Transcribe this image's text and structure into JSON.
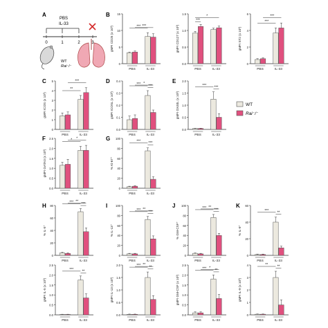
{
  "colors": {
    "wt": "#ece9df",
    "ko": "#e0507e",
    "axis": "#333333",
    "bar_stroke": "#555555"
  },
  "schematic": {
    "panel_label": "A",
    "group_labels": [
      "PBS",
      "IL-33"
    ],
    "days": [
      "0",
      "1",
      "2",
      "3"
    ],
    "mouse_label": "WT",
    "mouse_label_2": "Rai⁻/⁻",
    "cross_icon": "red-x-icon"
  },
  "legend": {
    "items": [
      "WT",
      "Rai⁻/⁻"
    ]
  },
  "chart_data": [
    {
      "panel": "B",
      "type": "bar",
      "ylabel": "gMFI CD25 (x 10³)",
      "categories": [
        "PBS",
        "IL-33"
      ],
      "ylim": [
        0,
        15
      ],
      "ticks": [
        0,
        5,
        10,
        15
      ],
      "series": [
        {
          "name": "WT",
          "values": [
            3.3,
            8.2
          ]
        },
        {
          "name": "Rai⁻/⁻",
          "values": [
            3.5,
            8.0
          ]
        }
      ],
      "errors": [
        [
          0.2,
          1.1
        ],
        [
          0.3,
          1.0
        ]
      ],
      "sig": [
        {
          "from": 0,
          "to": 2,
          "label": "***"
        },
        {
          "from": 1,
          "to": 3,
          "label": "***"
        }
      ]
    },
    {
      "panel": "B2",
      "type": "bar",
      "ylabel": "gMFI CD127 (x 10³)",
      "categories": [
        "PBS",
        "IL-33"
      ],
      "ylim": [
        0,
        1.5
      ],
      "ticks": [
        0.0,
        0.5,
        1.0,
        1.5
      ],
      "series": [
        {
          "name": "WT",
          "values": [
            0.92,
            1.03
          ]
        },
        {
          "name": "Rai⁻/⁻",
          "values": [
            1.12,
            1.08
          ]
        }
      ],
      "errors": [
        [
          0.05,
          0.04
        ],
        [
          0.06,
          0.05
        ]
      ],
      "sig": [
        {
          "from": 0,
          "to": 1,
          "label": "***"
        },
        {
          "from": 0,
          "to": 3,
          "label": "*"
        }
      ]
    },
    {
      "panel": "B3",
      "type": "bar",
      "ylabel": "gMFI ST2 (x 10³)",
      "categories": [
        "PBS",
        "IL-33"
      ],
      "ylim": [
        0,
        6
      ],
      "ticks": [
        0,
        2,
        4,
        6
      ],
      "series": [
        {
          "name": "WT",
          "values": [
            0.5,
            3.7
          ]
        },
        {
          "name": "Rai⁻/⁻",
          "values": [
            0.6,
            4.3
          ]
        }
      ],
      "errors": [
        [
          0.1,
          0.6
        ],
        [
          0.1,
          0.6
        ]
      ],
      "sig": [
        {
          "from": 0,
          "to": 2,
          "label": "***"
        },
        {
          "from": 1,
          "to": 3,
          "label": "***"
        }
      ]
    },
    {
      "panel": "C",
      "type": "bar",
      "ylabel": "gMFI ICOS (x 10³)",
      "categories": [
        "PBS",
        "IL-33"
      ],
      "ylim": [
        0,
        5
      ],
      "ticks": [
        0,
        1,
        2,
        3,
        4,
        5
      ],
      "series": [
        {
          "name": "WT",
          "values": [
            1.4,
            3.1
          ]
        },
        {
          "name": "Rai⁻/⁻",
          "values": [
            1.5,
            3.8
          ]
        }
      ],
      "errors": [
        [
          0.3,
          0.4
        ],
        [
          0.3,
          0.5
        ]
      ],
      "sig": [
        {
          "from": 0,
          "to": 2,
          "label": "**"
        },
        {
          "from": 1,
          "to": 3,
          "label": "***"
        }
      ]
    },
    {
      "panel": "D",
      "type": "bar",
      "ylabel": "gMFI ICOSL (x 10³)",
      "categories": [
        "PBS",
        "IL-33"
      ],
      "ylim": [
        0,
        0.4
      ],
      "ticks": [
        0.0,
        0.1,
        0.2,
        0.3,
        0.4
      ],
      "series": [
        {
          "name": "WT",
          "values": [
            0.08,
            0.28
          ]
        },
        {
          "name": "Rai⁻/⁻",
          "values": [
            0.09,
            0.14
          ]
        }
      ],
      "errors": [
        [
          0.03,
          0.04
        ],
        [
          0.03,
          0.02
        ]
      ],
      "sig": [
        {
          "from": 0,
          "to": 2,
          "label": "***"
        },
        {
          "from": 2,
          "to": 3,
          "label": "***"
        },
        {
          "from": 1,
          "to": 3,
          "label": "*"
        }
      ]
    },
    {
      "panel": "E",
      "type": "bar",
      "ylabel": "gMFI OX40L (x 10³)",
      "categories": [
        "PBS",
        "IL-33"
      ],
      "ylim": [
        0,
        2.0
      ],
      "ticks": [
        0.0,
        0.5,
        1.0,
        1.5,
        2.0
      ],
      "series": [
        {
          "name": "WT",
          "values": [
            0.04,
            1.25
          ]
        },
        {
          "name": "Rai⁻/⁻",
          "values": [
            0.04,
            0.5
          ]
        }
      ],
      "errors": [
        [
          0.01,
          0.3
        ],
        [
          0.01,
          0.15
        ]
      ],
      "sig": [
        {
          "from": 0,
          "to": 2,
          "label": "***"
        },
        {
          "from": 2,
          "to": 3,
          "label": "***"
        }
      ]
    },
    {
      "panel": "F",
      "type": "bar",
      "ylabel": "gMFI GATA3 (x 10³)",
      "categories": [
        "PBS",
        "IL-33"
      ],
      "ylim": [
        0,
        2.5
      ],
      "ticks": [
        0.0,
        0.5,
        1.0,
        1.5,
        2.0,
        2.5
      ],
      "series": [
        {
          "name": "WT",
          "values": [
            1.15,
            1.9
          ]
        },
        {
          "name": "Rai⁻/⁻",
          "values": [
            1.2,
            1.9
          ]
        }
      ],
      "errors": [
        [
          0.15,
          0.2
        ],
        [
          0.25,
          0.25
        ]
      ],
      "sig": [
        {
          "from": 0,
          "to": 2,
          "label": "*"
        },
        {
          "from": 1,
          "to": 3,
          "label": "*"
        }
      ]
    },
    {
      "panel": "G",
      "type": "bar",
      "ylabel": "% Ki-67⁺",
      "categories": [
        "PBS",
        "IL-33"
      ],
      "ylim": [
        0,
        100
      ],
      "ticks": [
        0,
        20,
        40,
        60,
        80,
        100
      ],
      "series": [
        {
          "name": "WT",
          "values": [
            3,
            75
          ]
        },
        {
          "name": "Rai⁻/⁻",
          "values": [
            4,
            18
          ]
        }
      ],
      "errors": [
        [
          1,
          6
        ],
        [
          1,
          5
        ]
      ],
      "sig": [
        {
          "from": 0,
          "to": 2,
          "label": "***"
        },
        {
          "from": 2,
          "to": 3,
          "label": "***"
        }
      ]
    },
    {
      "panel": "H",
      "type": "bar",
      "ylabel": "% IL-5⁺",
      "categories": [
        "PBS",
        "IL-33"
      ],
      "ylim": [
        0,
        80
      ],
      "ticks": [
        0,
        20,
        40,
        60,
        80
      ],
      "series": [
        {
          "name": "WT",
          "values": [
            4,
            70
          ]
        },
        {
          "name": "Rai⁻/⁻",
          "values": [
            3,
            38
          ]
        }
      ],
      "errors": [
        [
          1,
          5
        ],
        [
          1,
          6
        ]
      ],
      "sig": [
        {
          "from": 0,
          "to": 2,
          "label": "***"
        },
        {
          "from": 2,
          "to": 3,
          "label": "***"
        },
        {
          "from": 1,
          "to": 3,
          "label": "**"
        }
      ]
    },
    {
      "panel": "I",
      "type": "bar",
      "ylabel": "% IL-13⁺",
      "categories": [
        "PBS",
        "IL-33"
      ],
      "ylim": [
        0,
        100
      ],
      "ticks": [
        0,
        20,
        40,
        60,
        80,
        100
      ],
      "series": [
        {
          "name": "WT",
          "values": [
            3,
            72
          ]
        },
        {
          "name": "Rai⁻/⁻",
          "values": [
            3,
            33
          ]
        }
      ],
      "errors": [
        [
          1,
          6
        ],
        [
          1,
          6
        ]
      ],
      "sig": [
        {
          "from": 0,
          "to": 2,
          "label": "***"
        },
        {
          "from": 2,
          "to": 3,
          "label": "***"
        },
        {
          "from": 1,
          "to": 3,
          "label": "**"
        }
      ]
    },
    {
      "panel": "J",
      "type": "bar",
      "ylabel": "% GM-CSF⁺",
      "categories": [
        "PBS",
        "IL-33"
      ],
      "ylim": [
        0,
        100
      ],
      "ticks": [
        0,
        20,
        40,
        60,
        80,
        100
      ],
      "series": [
        {
          "name": "WT",
          "values": [
            4,
            76
          ]
        },
        {
          "name": "Rai⁻/⁻",
          "values": [
            3,
            40
          ]
        }
      ],
      "errors": [
        [
          1,
          6
        ],
        [
          1,
          4
        ]
      ],
      "sig": [
        {
          "from": 0,
          "to": 2,
          "label": "***"
        },
        {
          "from": 2,
          "to": 3,
          "label": "***"
        },
        {
          "from": 1,
          "to": 3,
          "label": "**"
        }
      ]
    },
    {
      "panel": "K",
      "type": "bar",
      "ylabel": "% IL-9⁺",
      "categories": [
        "PBS",
        "IL-33"
      ],
      "ylim": [
        0,
        60
      ],
      "ticks": [
        0,
        20,
        40,
        60
      ],
      "series": [
        {
          "name": "WT",
          "values": [
            1,
            40
          ]
        },
        {
          "name": "Rai⁻/⁻",
          "values": [
            1,
            9
          ]
        }
      ],
      "errors": [
        [
          0.5,
          6
        ],
        [
          0.5,
          2
        ]
      ],
      "sig": [
        {
          "from": 0,
          "to": 2,
          "label": "***"
        },
        {
          "from": 2,
          "to": 3,
          "label": "**"
        }
      ]
    },
    {
      "panel": "H2",
      "type": "bar",
      "ylabel": "gMFI IL-5 (x 10³)",
      "categories": [
        "PBS",
        "IL-33"
      ],
      "ylim": [
        0,
        2.5
      ],
      "ticks": [
        0.0,
        0.5,
        1.0,
        1.5,
        2.0,
        2.5
      ],
      "series": [
        {
          "name": "WT",
          "values": [
            0.02,
            1.75
          ]
        },
        {
          "name": "Rai⁻/⁻",
          "values": [
            0.02,
            0.85
          ]
        }
      ],
      "errors": [
        [
          0.01,
          0.2
        ],
        [
          0.01,
          0.2
        ]
      ],
      "sig": [
        {
          "from": 0,
          "to": 2,
          "label": "***"
        },
        {
          "from": 2,
          "to": 3,
          "label": "**"
        }
      ]
    },
    {
      "panel": "I2",
      "type": "bar",
      "ylabel": "gMFI IL-13 (x 10³)",
      "categories": [
        "PBS",
        "IL-33"
      ],
      "ylim": [
        0,
        2.0
      ],
      "ticks": [
        0.0,
        0.5,
        1.0,
        1.5,
        2.0
      ],
      "series": [
        {
          "name": "WT",
          "values": [
            0.02,
            1.5
          ]
        },
        {
          "name": "Rai⁻/⁻",
          "values": [
            0.02,
            0.62
          ]
        }
      ],
      "errors": [
        [
          0.01,
          0.22
        ],
        [
          0.01,
          0.15
        ]
      ],
      "sig": [
        {
          "from": 0,
          "to": 2,
          "label": "***"
        },
        {
          "from": 2,
          "to": 3,
          "label": "**"
        },
        {
          "from": 1,
          "to": 3,
          "label": "**"
        }
      ]
    },
    {
      "panel": "J2",
      "type": "bar",
      "ylabel": "gMFI GM-CSF (x 10³)",
      "categories": [
        "PBS",
        "IL-33"
      ],
      "ylim": [
        0,
        2.5
      ],
      "ticks": [
        0.0,
        0.5,
        1.0,
        1.5,
        2.0,
        2.5
      ],
      "series": [
        {
          "name": "WT",
          "values": [
            0.1,
            1.8
          ]
        },
        {
          "name": "Rai⁻/⁻",
          "values": [
            0.1,
            0.82
          ]
        }
      ],
      "errors": [
        [
          0.05,
          0.2
        ],
        [
          0.05,
          0.2
        ]
      ],
      "sig": [
        {
          "from": 0,
          "to": 2,
          "label": "***"
        },
        {
          "from": 2,
          "to": 3,
          "label": "**"
        },
        {
          "from": 1,
          "to": 3,
          "label": "*"
        }
      ]
    },
    {
      "panel": "K2",
      "type": "bar",
      "ylabel": "gMFI IL-9 (x 10³)",
      "categories": [
        "PBS",
        "IL-33"
      ],
      "ylim": [
        0,
        4
      ],
      "ticks": [
        0,
        1,
        2,
        3,
        4
      ],
      "series": [
        {
          "name": "WT",
          "values": [
            0.05,
            3.0
          ]
        },
        {
          "name": "Rai⁻/⁻",
          "values": [
            0.05,
            0.8
          ]
        }
      ],
      "errors": [
        [
          0.02,
          0.5
        ],
        [
          0.02,
          0.4
        ]
      ],
      "sig": [
        {
          "from": 0,
          "to": 2,
          "label": "**"
        },
        {
          "from": 2,
          "to": 3,
          "label": "**"
        }
      ]
    }
  ]
}
